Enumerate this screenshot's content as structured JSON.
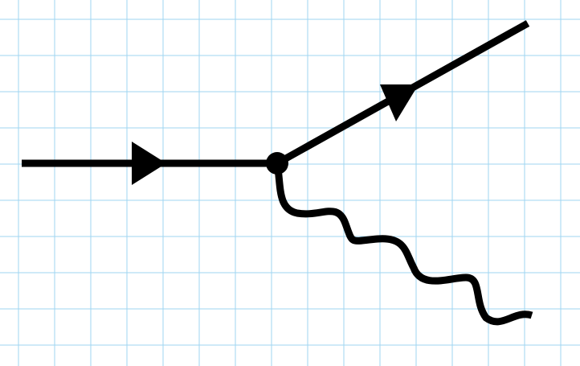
{
  "diagram": {
    "type": "feynman-diagram",
    "elements": {
      "incoming_particle": "fermion-line-with-arrow",
      "outgoing_particle": "fermion-line-with-arrow",
      "emitted_boson": "wavy-photon-line",
      "vertex": "interaction-vertex"
    }
  },
  "colors": {
    "background": "#ffffff",
    "grid": "#9fd6f2",
    "ink": "#000000"
  }
}
